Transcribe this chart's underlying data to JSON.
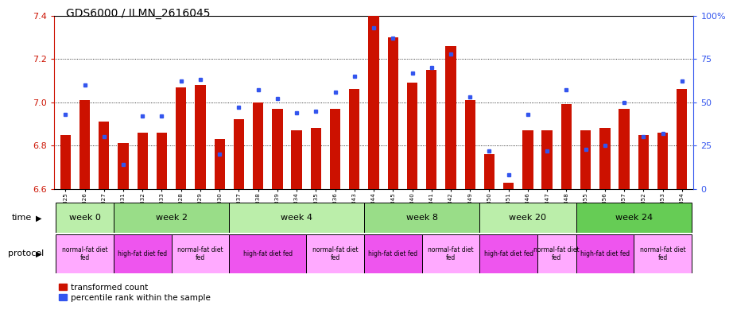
{
  "title": "GDS6000 / ILMN_2616045",
  "samples": [
    "GSM1577825",
    "GSM1577826",
    "GSM1577827",
    "GSM1577831",
    "GSM1577832",
    "GSM1577833",
    "GSM1577828",
    "GSM1577829",
    "GSM1577830",
    "GSM1577837",
    "GSM1577838",
    "GSM1577839",
    "GSM1577834",
    "GSM1577835",
    "GSM1577836",
    "GSM1577843",
    "GSM1577844",
    "GSM1577845",
    "GSM1577840",
    "GSM1577841",
    "GSM1577842",
    "GSM1577849",
    "GSM1577850",
    "GSM1577851",
    "GSM1577846",
    "GSM1577847",
    "GSM1577848",
    "GSM1577855",
    "GSM1577856",
    "GSM1577857",
    "GSM1577852",
    "GSM1577853",
    "GSM1577854"
  ],
  "transformed_count": [
    6.85,
    7.01,
    6.91,
    6.81,
    6.86,
    6.86,
    7.07,
    7.08,
    6.83,
    6.92,
    7.0,
    6.97,
    6.87,
    6.88,
    6.97,
    7.06,
    7.4,
    7.3,
    7.09,
    7.15,
    7.26,
    7.01,
    6.76,
    6.63,
    6.87,
    6.87,
    6.99,
    6.87,
    6.88,
    6.97,
    6.85,
    6.86,
    7.06
  ],
  "percentile_rank": [
    43,
    60,
    30,
    14,
    42,
    42,
    62,
    63,
    20,
    47,
    57,
    52,
    44,
    45,
    56,
    65,
    93,
    87,
    67,
    70,
    78,
    53,
    22,
    8,
    43,
    22,
    57,
    23,
    25,
    50,
    30,
    32,
    62
  ],
  "ylim_left": [
    6.6,
    7.4
  ],
  "ylim_right": [
    0,
    100
  ],
  "yticks_left": [
    6.6,
    6.8,
    7.0,
    7.2,
    7.4
  ],
  "yticks_right": [
    0,
    25,
    50,
    75,
    100
  ],
  "bar_color": "#CC1100",
  "marker_color": "#3355EE",
  "time_groups": [
    {
      "label": "week 0",
      "start": 0,
      "end": 3,
      "color": "#BBEEAA"
    },
    {
      "label": "week 2",
      "start": 3,
      "end": 9,
      "color": "#99DD88"
    },
    {
      "label": "week 4",
      "start": 9,
      "end": 16,
      "color": "#BBEEAA"
    },
    {
      "label": "week 8",
      "start": 16,
      "end": 22,
      "color": "#99DD88"
    },
    {
      "label": "week 20",
      "start": 22,
      "end": 27,
      "color": "#BBEEAA"
    },
    {
      "label": "week 24",
      "start": 27,
      "end": 33,
      "color": "#66CC55"
    }
  ],
  "protocol_groups": [
    {
      "label": "normal-fat diet\nfed",
      "start": 0,
      "end": 3,
      "color": "#FFAAFF"
    },
    {
      "label": "high-fat diet fed",
      "start": 3,
      "end": 6,
      "color": "#EE55EE"
    },
    {
      "label": "normal-fat diet\nfed",
      "start": 6,
      "end": 9,
      "color": "#FFAAFF"
    },
    {
      "label": "high-fat diet fed",
      "start": 9,
      "end": 13,
      "color": "#EE55EE"
    },
    {
      "label": "normal-fat diet\nfed",
      "start": 13,
      "end": 16,
      "color": "#FFAAFF"
    },
    {
      "label": "high-fat diet fed",
      "start": 16,
      "end": 19,
      "color": "#EE55EE"
    },
    {
      "label": "normal-fat diet\nfed",
      "start": 19,
      "end": 22,
      "color": "#FFAAFF"
    },
    {
      "label": "high-fat diet fed",
      "start": 22,
      "end": 25,
      "color": "#EE55EE"
    },
    {
      "label": "normal-fat diet\nfed",
      "start": 25,
      "end": 27,
      "color": "#FFAAFF"
    },
    {
      "label": "high-fat diet fed",
      "start": 27,
      "end": 30,
      "color": "#EE55EE"
    },
    {
      "label": "normal-fat diet\nfed",
      "start": 30,
      "end": 33,
      "color": "#FFAAFF"
    }
  ],
  "bg_color": "#FFFFFF",
  "tick_label_color_left": "#CC1100",
  "tick_label_color_right": "#3355EE",
  "bar_width": 0.55
}
